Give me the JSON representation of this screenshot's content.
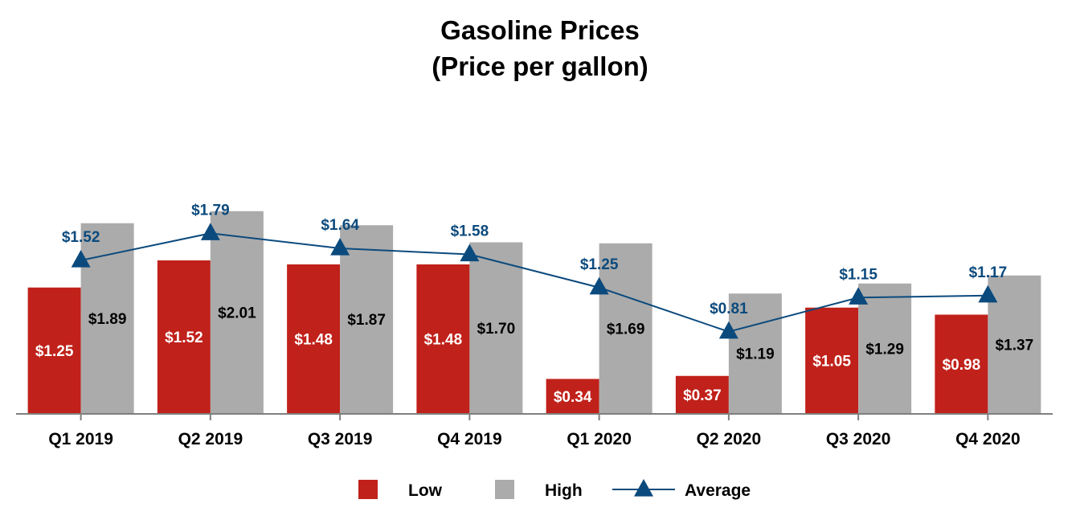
{
  "chart_data": {
    "type": "bar",
    "title_lines": [
      "Gasoline Prices",
      "(Price per gallon)"
    ],
    "categories": [
      "Q1 2019",
      "Q2 2019",
      "Q3 2019",
      "Q4 2019",
      "Q1 2020",
      "Q2 2020",
      "Q3 2020",
      "Q4 2020"
    ],
    "series": [
      {
        "name": "Low",
        "kind": "bar",
        "color": "#C0211A",
        "values": [
          1.25,
          1.52,
          1.48,
          1.48,
          0.34,
          0.37,
          1.05,
          0.98
        ],
        "labels": [
          "$1.25",
          "$1.52",
          "$1.48",
          "$1.48",
          "$0.34",
          "$0.37",
          "$1.05",
          "$0.98"
        ]
      },
      {
        "name": "High",
        "kind": "bar",
        "color": "#ABABAB",
        "values": [
          1.89,
          2.01,
          1.87,
          1.7,
          1.69,
          1.19,
          1.29,
          1.37
        ],
        "labels": [
          "$1.89",
          "$2.01",
          "$1.87",
          "$1.70",
          "$1.69",
          "$1.19",
          "$1.29",
          "$1.37"
        ]
      },
      {
        "name": "Average",
        "kind": "line",
        "marker": "triangle",
        "color": "#0B4A7D",
        "values": [
          1.52,
          1.79,
          1.64,
          1.58,
          1.25,
          0.81,
          1.15,
          1.17
        ],
        "labels": [
          "$1.52",
          "$1.79",
          "$1.64",
          "$1.58",
          "$1.25",
          "$0.81",
          "$1.15",
          "$1.17"
        ]
      }
    ],
    "xlabel": "",
    "ylabel": "",
    "ylim": [
      0,
      2.0
    ],
    "grid": false,
    "legend": "bottom-center",
    "axis_color": "#7F7F7F"
  }
}
